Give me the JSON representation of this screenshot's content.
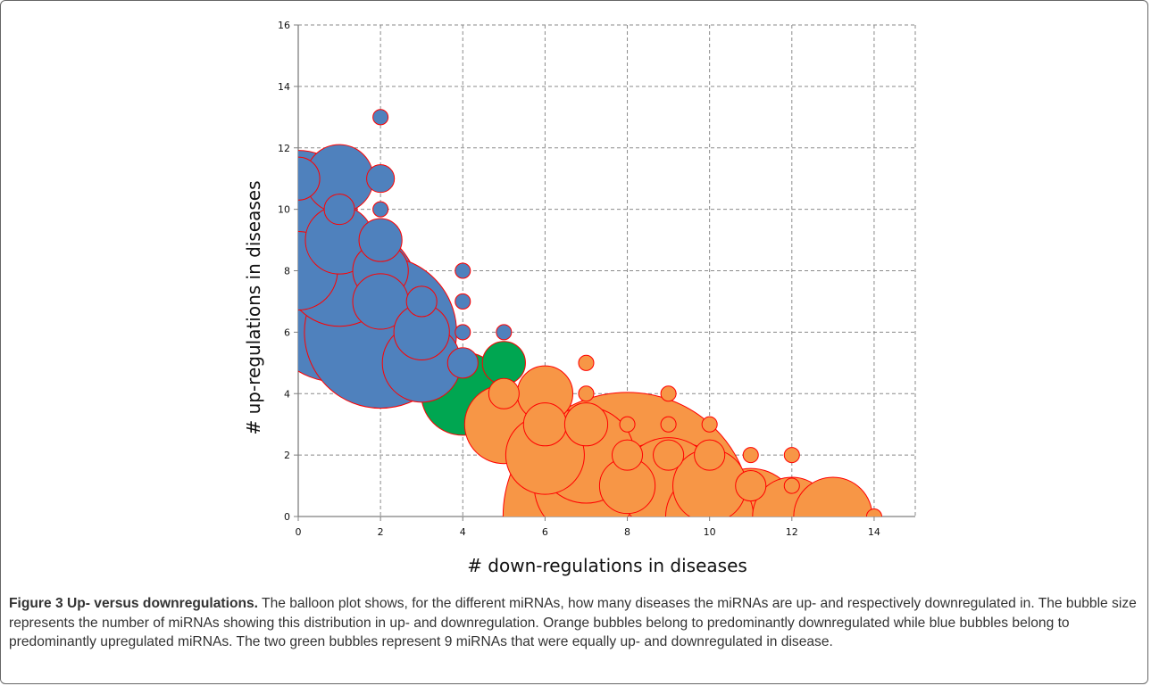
{
  "chart_data": {
    "type": "scatter",
    "xlabel": "# down-regulations in diseases",
    "ylabel": "# up-regulations in diseases",
    "xlim": [
      0,
      15
    ],
    "ylim": [
      0,
      16
    ],
    "x_ticks": [
      "0",
      "2",
      "4",
      "6",
      "8",
      "10",
      "12",
      "14"
    ],
    "y_ticks": [
      "0",
      "2",
      "4",
      "6",
      "8",
      "10",
      "12",
      "14",
      "16"
    ],
    "grid": true,
    "colors": {
      "blue": "#4f81bd",
      "orange": "#f79646",
      "green": "#00a651",
      "edge": "#ff0000"
    },
    "points": [
      {
        "x": 0,
        "y": 11,
        "size": 1.2,
        "group": "blue"
      },
      {
        "x": 0,
        "y": 10,
        "size": 9,
        "group": "blue"
      },
      {
        "x": 0,
        "y": 9,
        "size": 6,
        "group": "blue"
      },
      {
        "x": 0,
        "y": 8,
        "size": 4,
        "group": "blue"
      },
      {
        "x": 1,
        "y": 11,
        "size": 3,
        "group": "blue"
      },
      {
        "x": 1,
        "y": 10,
        "size": 0.6,
        "group": "blue"
      },
      {
        "x": 1,
        "y": 9,
        "size": 3,
        "group": "blue"
      },
      {
        "x": 1,
        "y": 8,
        "size": 8,
        "group": "blue"
      },
      {
        "x": 1,
        "y": 7,
        "size": 17,
        "group": "blue"
      },
      {
        "x": 2,
        "y": 13,
        "size": 0.15,
        "group": "blue"
      },
      {
        "x": 2,
        "y": 11,
        "size": 0.5,
        "group": "blue"
      },
      {
        "x": 2,
        "y": 10,
        "size": 0.15,
        "group": "blue"
      },
      {
        "x": 2,
        "y": 9,
        "size": 1.2,
        "group": "blue"
      },
      {
        "x": 2,
        "y": 8,
        "size": 2,
        "group": "blue"
      },
      {
        "x": 2,
        "y": 7,
        "size": 2,
        "group": "blue"
      },
      {
        "x": 2,
        "y": 6,
        "size": 15,
        "group": "blue"
      },
      {
        "x": 3,
        "y": 7,
        "size": 0.6,
        "group": "blue"
      },
      {
        "x": 3,
        "y": 6,
        "size": 2,
        "group": "blue"
      },
      {
        "x": 3,
        "y": 5,
        "size": 4,
        "group": "blue"
      },
      {
        "x": 4,
        "y": 8,
        "size": 0.15,
        "group": "blue"
      },
      {
        "x": 4,
        "y": 7,
        "size": 0.15,
        "group": "blue"
      },
      {
        "x": 4,
        "y": 6,
        "size": 0.15,
        "group": "blue"
      },
      {
        "x": 4,
        "y": 5,
        "size": 0.6,
        "group": "blue"
      },
      {
        "x": 5,
        "y": 6,
        "size": 0.15,
        "group": "blue"
      },
      {
        "x": 4,
        "y": 4,
        "size": 4.5,
        "group": "green"
      },
      {
        "x": 5,
        "y": 5,
        "size": 1.2,
        "group": "green"
      },
      {
        "x": 5,
        "y": 4,
        "size": 0.6,
        "group": "orange"
      },
      {
        "x": 5,
        "y": 3,
        "size": 4,
        "group": "orange"
      },
      {
        "x": 6,
        "y": 4,
        "size": 2,
        "group": "orange"
      },
      {
        "x": 6,
        "y": 3,
        "size": 1.2,
        "group": "orange"
      },
      {
        "x": 6,
        "y": 2,
        "size": 4,
        "group": "orange"
      },
      {
        "x": 7,
        "y": 5,
        "size": 0.15,
        "group": "orange"
      },
      {
        "x": 7,
        "y": 4,
        "size": 0.15,
        "group": "orange"
      },
      {
        "x": 7,
        "y": 3,
        "size": 1.2,
        "group": "orange"
      },
      {
        "x": 7,
        "y": 2,
        "size": 6,
        "group": "orange"
      },
      {
        "x": 7,
        "y": 1,
        "size": 7,
        "group": "orange"
      },
      {
        "x": 8,
        "y": 3,
        "size": 0.15,
        "group": "orange"
      },
      {
        "x": 8,
        "y": 2,
        "size": 0.6,
        "group": "orange"
      },
      {
        "x": 8,
        "y": 1,
        "size": 2,
        "group": "orange"
      },
      {
        "x": 8,
        "y": 0,
        "size": 40,
        "group": "orange"
      },
      {
        "x": 9,
        "y": 4,
        "size": 0.15,
        "group": "orange"
      },
      {
        "x": 9,
        "y": 3,
        "size": 0.15,
        "group": "orange"
      },
      {
        "x": 9,
        "y": 2,
        "size": 0.6,
        "group": "orange"
      },
      {
        "x": 9,
        "y": 1,
        "size": 6,
        "group": "orange"
      },
      {
        "x": 9,
        "y": 0,
        "size": 15,
        "group": "orange"
      },
      {
        "x": 10,
        "y": 3,
        "size": 0.15,
        "group": "orange"
      },
      {
        "x": 10,
        "y": 2,
        "size": 0.6,
        "group": "orange"
      },
      {
        "x": 10,
        "y": 1,
        "size": 3.5,
        "group": "orange"
      },
      {
        "x": 10,
        "y": 0,
        "size": 5,
        "group": "orange"
      },
      {
        "x": 11,
        "y": 2,
        "size": 0.15,
        "group": "orange"
      },
      {
        "x": 11,
        "y": 1,
        "size": 0.6,
        "group": "orange"
      },
      {
        "x": 11,
        "y": 0,
        "size": 6,
        "group": "orange"
      },
      {
        "x": 12,
        "y": 2,
        "size": 0.15,
        "group": "orange"
      },
      {
        "x": 12,
        "y": 1,
        "size": 0.15,
        "group": "orange"
      },
      {
        "x": 12,
        "y": 0,
        "size": 4,
        "group": "orange"
      },
      {
        "x": 13,
        "y": 0,
        "size": 4,
        "group": "orange"
      },
      {
        "x": 14,
        "y": 0,
        "size": 0.15,
        "group": "orange"
      }
    ]
  },
  "caption": {
    "label": "Figure 3 Up- versus downregulations.",
    "text": " The balloon plot shows, for the different miRNAs, how many diseases the miRNAs are up- and respectively downregulated in. The bubble size represents the number of miRNAs showing this distribution in up- and downregulation. Orange bubbles belong to predominantly downregulated while blue bubbles belong to predominantly upregulated miRNAs. The two green bubbles represent 9 miRNAs that were equally up- and downregulated in disease."
  }
}
